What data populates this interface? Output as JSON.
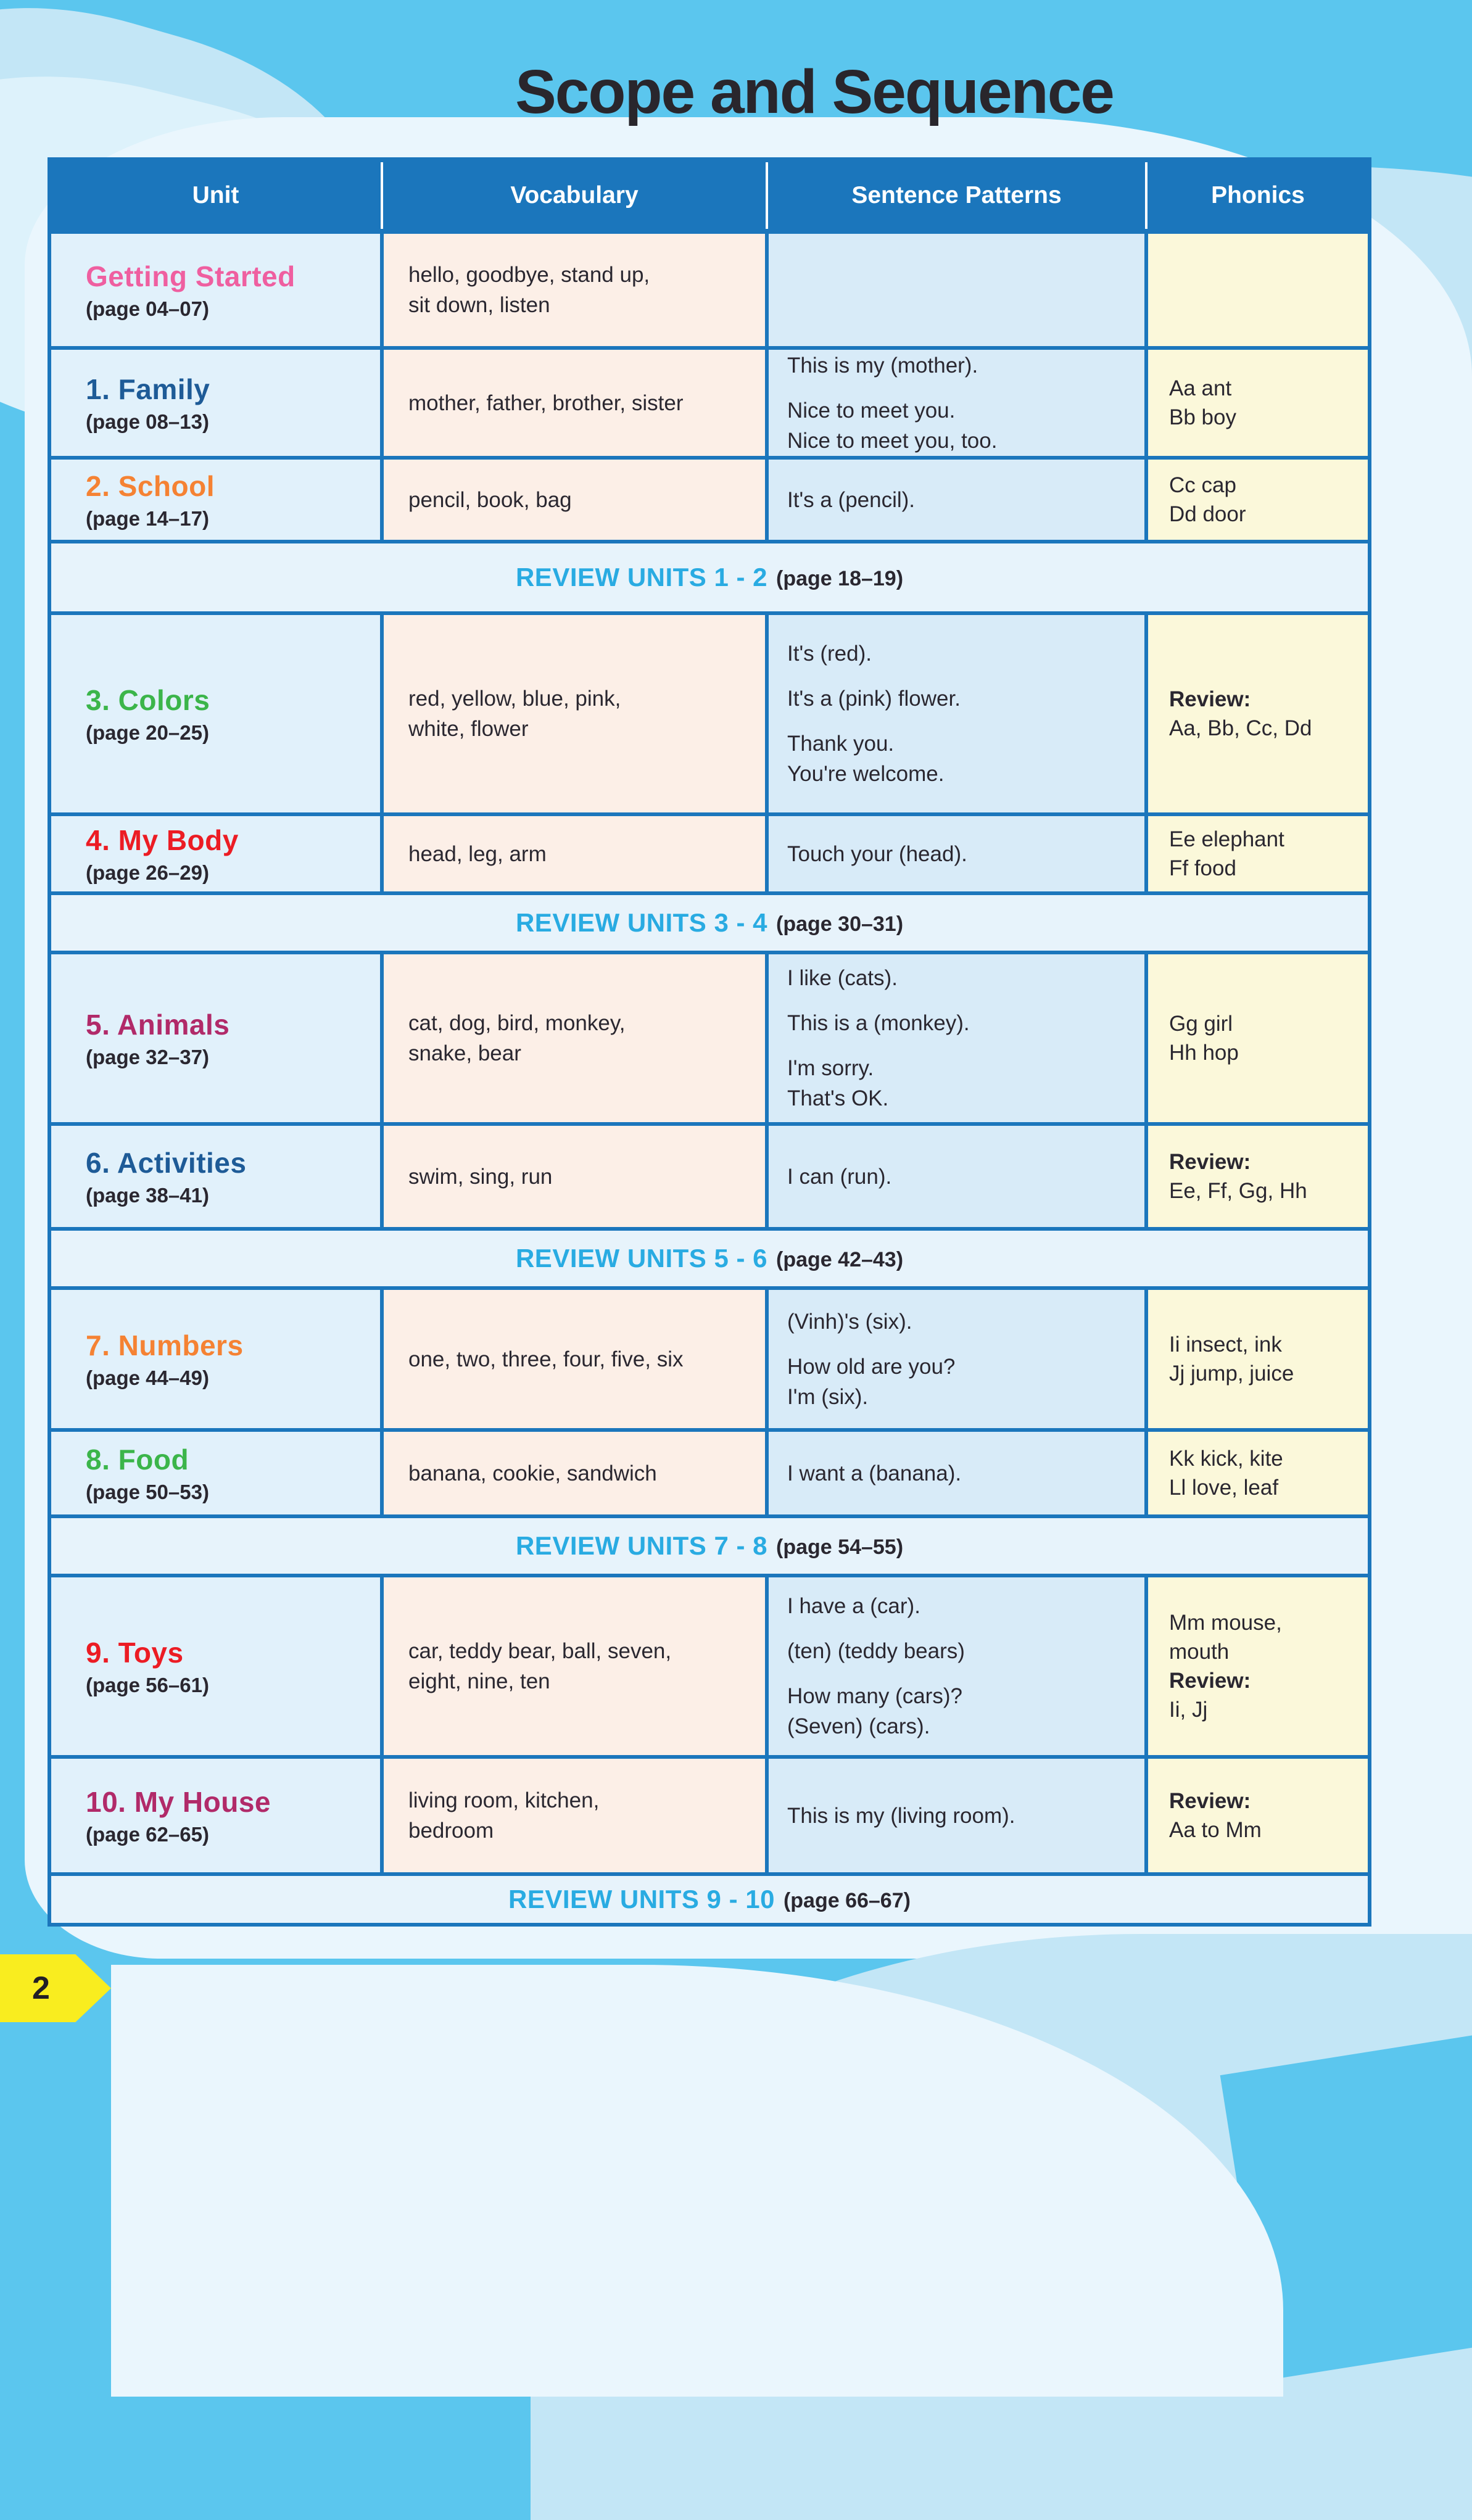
{
  "page": {
    "title": "Scope and Sequence",
    "page_number": "2"
  },
  "colors": {
    "sky": "#5BC6EE",
    "paper": "#EAF6FD",
    "wave-mid": "#C3E6F6",
    "wave-light": "#DDF2FB",
    "grid": "#1B76BC",
    "unit-bg": "#E1F1FB",
    "vocab-bg": "#FCEFE7",
    "sent-bg": "#D8EBF8",
    "phon-bg": "#FBF8DA",
    "review-bg": "#E7F3FB",
    "cyan": "#29ABE2",
    "ink": "#2A2730",
    "tab": "#F9ED1F"
  },
  "table": {
    "headers": [
      "Unit",
      "Vocabulary",
      "Sentence Patterns",
      "Phonics"
    ],
    "rows": [
      {
        "type": "unit",
        "title": "Getting Started",
        "color": "#EF5FA0",
        "page": "(page 04–07)",
        "vocabulary": [
          "hello, goodbye, stand up,",
          "sit down, listen"
        ],
        "sentences": [],
        "phonics": []
      },
      {
        "type": "unit",
        "title": "1. Family",
        "color": "#1E5B97",
        "page": "(page 08–13)",
        "vocabulary": [
          "mother, father, brother, sister"
        ],
        "sentences": [
          [
            "This is my (mother)."
          ],
          [
            "Nice to meet you.",
            "Nice to meet you, too."
          ]
        ],
        "phonics": [
          {
            "t": "Aa ant"
          },
          {
            "t": "Bb boy"
          }
        ]
      },
      {
        "type": "unit",
        "title": "2. School",
        "color": "#F58233",
        "page": "(page 14–17)",
        "vocabulary": [
          "pencil, book, bag"
        ],
        "sentences": [
          [
            "It's a (pencil)."
          ]
        ],
        "phonics": [
          {
            "t": "Cc cap"
          },
          {
            "t": "Dd door"
          }
        ]
      },
      {
        "type": "review",
        "label": "REVIEW UNITS 1 - 2",
        "page": "(page 18–19)"
      },
      {
        "type": "unit",
        "title": "3. Colors",
        "color": "#3BB54A",
        "page": "(page 20–25)",
        "vocabulary": [
          "red, yellow, blue, pink,",
          "white, flower"
        ],
        "sentences": [
          [
            "It's (red)."
          ],
          [
            "It's a (pink) flower."
          ],
          [
            "Thank you.",
            "You're welcome."
          ]
        ],
        "phonics": [
          {
            "t": "Review:",
            "b": true
          },
          {
            "t": "Aa, Bb, Cc, Dd"
          }
        ]
      },
      {
        "type": "unit",
        "title": "4. My Body",
        "color": "#EC1C24",
        "page": "(page 26–29)",
        "vocabulary": [
          "head, leg, arm"
        ],
        "sentences": [
          [
            "Touch your (head)."
          ]
        ],
        "phonics": [
          {
            "t": "Ee elephant"
          },
          {
            "t": "Ff food"
          }
        ]
      },
      {
        "type": "review",
        "label": "REVIEW UNITS 3 - 4",
        "page": "(page 30–31)"
      },
      {
        "type": "unit",
        "title": "5. Animals",
        "color": "#B12A69",
        "page": "(page 32–37)",
        "vocabulary": [
          "cat, dog, bird, monkey,",
          "snake, bear"
        ],
        "sentences": [
          [
            "I like (cats)."
          ],
          [
            "This is a (monkey)."
          ],
          [
            "I'm sorry.",
            "That's OK."
          ]
        ],
        "phonics": [
          {
            "t": "Gg girl"
          },
          {
            "t": "Hh hop"
          }
        ]
      },
      {
        "type": "unit",
        "title": "6. Activities",
        "color": "#1E5B97",
        "page": "(page 38–41)",
        "vocabulary": [
          "swim, sing, run"
        ],
        "sentences": [
          [
            "I can (run)."
          ]
        ],
        "phonics": [
          {
            "t": "Review:",
            "b": true
          },
          {
            "t": "Ee, Ff, Gg, Hh"
          }
        ]
      },
      {
        "type": "review",
        "label": "REVIEW UNITS 5 - 6",
        "page": "(page 42–43)"
      },
      {
        "type": "unit",
        "title": "7. Numbers",
        "color": "#F58233",
        "page": "(page 44–49)",
        "vocabulary": [
          "one, two, three, four, five, six"
        ],
        "sentences": [
          [
            "(Vinh)'s (six)."
          ],
          [
            "How old are you?",
            "I'm (six)."
          ]
        ],
        "phonics": [
          {
            "t": "Ii insect, ink"
          },
          {
            "t": "Jj jump, juice"
          }
        ]
      },
      {
        "type": "unit",
        "title": "8. Food",
        "color": "#3BB54A",
        "page": "(page 50–53)",
        "vocabulary": [
          "banana, cookie, sandwich"
        ],
        "sentences": [
          [
            "I want a (banana)."
          ]
        ],
        "phonics": [
          {
            "t": "Kk kick, kite"
          },
          {
            "t": "Ll love, leaf"
          }
        ]
      },
      {
        "type": "review",
        "label": "REVIEW UNITS 7 - 8",
        "page": "(page 54–55)"
      },
      {
        "type": "unit",
        "title": "9. Toys",
        "color": "#EC1C24",
        "page": "(page 56–61)",
        "vocabulary": [
          "car, teddy bear, ball, seven,",
          "eight, nine, ten"
        ],
        "sentences": [
          [
            "I have a (car)."
          ],
          [
            "(ten) (teddy bears)"
          ],
          [
            "How many (cars)?",
            "(Seven) (cars)."
          ]
        ],
        "phonics": [
          {
            "t": "Mm mouse,"
          },
          {
            "t": "mouth"
          },
          {
            "t": "Review:",
            "b": true
          },
          {
            "t": "Ii, Jj"
          }
        ]
      },
      {
        "type": "unit",
        "title": "10. My House",
        "color": "#B12A69",
        "page": "(page 62–65)",
        "vocabulary": [
          "living room, kitchen,",
          "bedroom"
        ],
        "sentences": [
          [
            "This is my (living room)."
          ]
        ],
        "phonics": [
          {
            "t": "Review:",
            "b": true
          },
          {
            "t": "Aa to Mm"
          }
        ]
      },
      {
        "type": "review",
        "label": "REVIEW UNITS 9 - 10",
        "page": "(page 66–67)"
      }
    ]
  }
}
